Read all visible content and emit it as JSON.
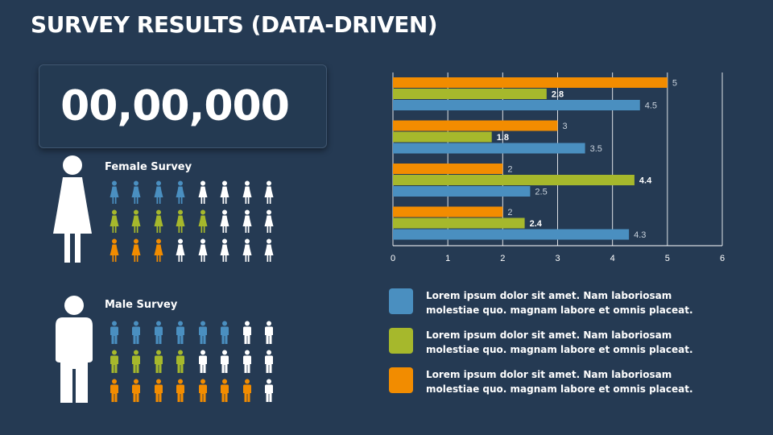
{
  "title": "SURVEY RESULTS (DATA-DRIVEN)",
  "counter": "00,00,000",
  "female": {
    "label": "Female Survey",
    "rows": [
      {
        "color": "#4a8fc0",
        "filled": 4
      },
      {
        "color": "#a6b82c",
        "filled": 5
      },
      {
        "color": "#f28c00",
        "filled": 3
      }
    ]
  },
  "male": {
    "label": "Male Survey",
    "rows": [
      {
        "color": "#4a8fc0",
        "filled": 6
      },
      {
        "color": "#a6b82c",
        "filled": 4
      },
      {
        "color": "#f28c00",
        "filled": 7
      }
    ]
  },
  "icons_per_row": 8,
  "chart_data": {
    "type": "bar",
    "orientation": "horizontal",
    "xlim": [
      0,
      6
    ],
    "xticks": [
      "0",
      "1",
      "2",
      "3",
      "4",
      "5",
      "6"
    ],
    "grid": true,
    "groups": [
      {
        "orange": 5,
        "green": 2.8,
        "blue": 4.5
      },
      {
        "orange": 3,
        "green": 1.8,
        "blue": 3.5
      },
      {
        "orange": 2,
        "green": 4.4,
        "blue": 2.5
      },
      {
        "orange": 2,
        "green": 2.4,
        "blue": 4.3
      }
    ],
    "series_colors": {
      "orange": "#f28c00",
      "green": "#a6b82c",
      "blue": "#4a8fc0"
    }
  },
  "legend": [
    {
      "color": "#4a8fc0",
      "text": "Lorem ipsum dolor sit amet. Nam laboriosam molestiae quo. magnam labore et omnis placeat."
    },
    {
      "color": "#a6b82c",
      "text": "Lorem ipsum dolor sit amet. Nam laboriosam molestiae quo. magnam labore et omnis placeat."
    },
    {
      "color": "#f28c00",
      "text": "Lorem ipsum dolor sit amet. Nam laboriosam molestiae quo. magnam labore et omnis placeat."
    }
  ]
}
